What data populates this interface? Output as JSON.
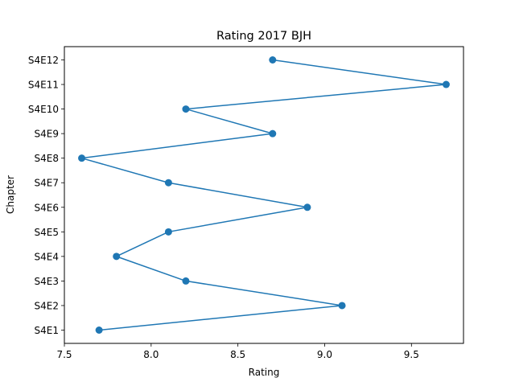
{
  "chart_data": {
    "type": "line",
    "orientation": "horizontal",
    "title": "Rating 2017 BJH",
    "xlabel": "Rating",
    "ylabel": "Chapter",
    "xlim": [
      7.5,
      9.8
    ],
    "x_ticks": [
      7.5,
      8.0,
      8.5,
      9.0,
      9.5
    ],
    "x_tick_labels": [
      "7.5",
      "8.0",
      "8.5",
      "9.0",
      "9.5"
    ],
    "categories": [
      "S4E1",
      "S4E2",
      "S4E3",
      "S4E4",
      "S4E5",
      "S4E6",
      "S4E7",
      "S4E8",
      "S4E9",
      "S4E10",
      "S4E11",
      "S4E12"
    ],
    "values": [
      7.7,
      9.1,
      8.2,
      7.8,
      8.1,
      8.9,
      8.1,
      7.6,
      8.7,
      8.2,
      9.7,
      8.7
    ],
    "color": "#1f77b4",
    "marker": "circle",
    "grid": false,
    "legend": "none"
  }
}
